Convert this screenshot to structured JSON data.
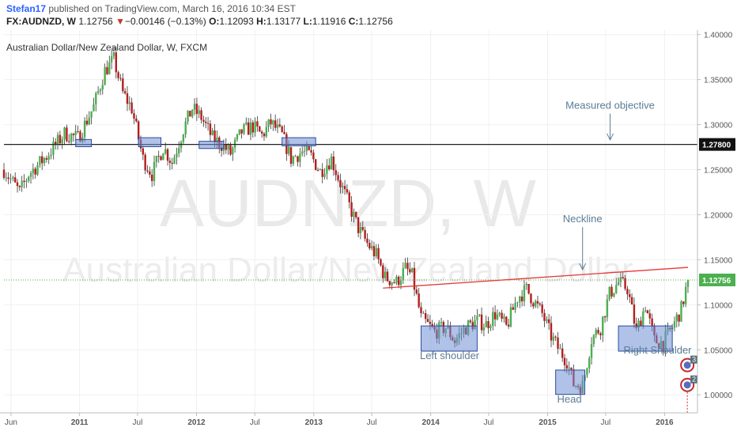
{
  "header": {
    "user": "Stefan17",
    "published": "published on TradingView.com, March 16, 2016 10:34 EST",
    "symbol": "FX:AUDNZD,",
    "interval": "W",
    "last": "1.12756",
    "change_arrow": "▼",
    "change": "−0.00146 (−0.13%)",
    "o_label": "O:",
    "o_value": "1.12093",
    "h_label": "H:",
    "h_value": "1.13177",
    "l_label": "L:",
    "l_value": "1.11916",
    "c_label": "C:",
    "c_value": "1.12756"
  },
  "colors": {
    "up": "#4caf50",
    "down": "#b71c1c",
    "neckline": "#e53935",
    "objective_line": "#222222",
    "box_fill": "#6f8fd6",
    "box_stroke": "#2b4a9e",
    "annotation": "#5b7c95"
  },
  "chart_data": {
    "type": "candlestick",
    "title": "Australian Dollar/New Zealand Dollar, W, FXCM",
    "watermark_symbol": "AUDNZD, W",
    "watermark_name": "Australian Dollar/New Zealand Dollar",
    "ylim": [
      0.98,
      1.405
    ],
    "y_ticks": [
      "1.40000",
      "1.35000",
      "1.30000",
      "1.25000",
      "1.20000",
      "1.15000",
      "1.10000",
      "1.05000",
      "1.00000"
    ],
    "y_tick_values": [
      1.4,
      1.35,
      1.3,
      1.25,
      1.2,
      1.15,
      1.1,
      1.05,
      1.0
    ],
    "x_ticks": [
      "Jun",
      "2011",
      "Jul",
      "2012",
      "Jul",
      "2013",
      "Jul",
      "2014",
      "Jul",
      "2015",
      "Jul",
      "2016"
    ],
    "x_tick_dates": [
      "2010-06-01",
      "2011-01-01",
      "2011-07-01",
      "2012-01-01",
      "2012-07-01",
      "2013-01-01",
      "2013-07-01",
      "2014-01-01",
      "2014-07-01",
      "2015-01-01",
      "2015-07-01",
      "2016-01-01"
    ],
    "x_range": [
      "2010-05-10",
      "2016-03-14"
    ],
    "price_labels": [
      {
        "value": "1.27800",
        "price": 1.278,
        "style": "dark"
      },
      {
        "value": "1.12756",
        "price": 1.12756,
        "style": "green"
      }
    ],
    "objective_line": {
      "price": 1.278
    },
    "neckline": {
      "from": {
        "date": "2013-08-05",
        "price": 1.1185
      },
      "to": {
        "date": "2016-03-14",
        "price": 1.1415
      }
    },
    "current_price_line": 1.12756,
    "annotations": [
      {
        "text": "Measured objective",
        "date": "2015-07-15",
        "price": 1.3175,
        "arrow_to": 1.283
      },
      {
        "text": "Neckline",
        "date": "2015-04-20",
        "price": 1.1915,
        "arrow_to": 1.139
      },
      {
        "text": "Left shoulder",
        "date": "2014-03-01",
        "price": 1.0395
      },
      {
        "text": "Head",
        "date": "2015-03-10",
        "price": 0.9915
      },
      {
        "text": "Right Shoulder",
        "date": "2015-12-10",
        "price": 1.046
      }
    ],
    "boxes": [
      {
        "from": "2010-12-20",
        "to": "2011-02-07",
        "low": 1.2755,
        "high": 1.2835
      },
      {
        "from": "2011-07-04",
        "to": "2011-09-12",
        "low": 1.2755,
        "high": 1.2855
      },
      {
        "from": "2012-01-09",
        "to": "2012-03-26",
        "low": 1.2735,
        "high": 1.2815
      },
      {
        "from": "2012-09-24",
        "to": "2013-01-07",
        "low": 1.2765,
        "high": 1.2855
      },
      {
        "from": "2013-12-02",
        "to": "2014-05-26",
        "low": 1.0485,
        "high": 1.0765
      },
      {
        "from": "2015-01-26",
        "to": "2015-04-27",
        "low": 1.0005,
        "high": 1.0275
      },
      {
        "from": "2015-08-10",
        "to": "2016-01-25",
        "low": 1.0485,
        "high": 1.0765
      }
    ],
    "series_anchors": [
      [
        "2010-05-10",
        1.25
      ],
      [
        "2010-06-28",
        1.225
      ],
      [
        "2010-07-26",
        1.245
      ],
      [
        "2010-09-20",
        1.265
      ],
      [
        "2010-11-15",
        1.29
      ],
      [
        "2010-12-27",
        1.285
      ],
      [
        "2011-02-14",
        1.32
      ],
      [
        "2011-03-21",
        1.36
      ],
      [
        "2011-04-18",
        1.372
      ],
      [
        "2011-05-16",
        1.335
      ],
      [
        "2011-06-13",
        1.318
      ],
      [
        "2011-07-18",
        1.262
      ],
      [
        "2011-08-15",
        1.245
      ],
      [
        "2011-09-19",
        1.275
      ],
      [
        "2011-10-17",
        1.258
      ],
      [
        "2011-11-21",
        1.295
      ],
      [
        "2011-12-19",
        1.318
      ],
      [
        "2012-01-16",
        1.308
      ],
      [
        "2012-02-20",
        1.285
      ],
      [
        "2012-03-19",
        1.278
      ],
      [
        "2012-04-16",
        1.268
      ],
      [
        "2012-05-21",
        1.292
      ],
      [
        "2012-06-25",
        1.298
      ],
      [
        "2012-07-23",
        1.288
      ],
      [
        "2012-08-20",
        1.302
      ],
      [
        "2012-09-24",
        1.288
      ],
      [
        "2012-10-22",
        1.262
      ],
      [
        "2012-11-26",
        1.27
      ],
      [
        "2012-12-24",
        1.265
      ],
      [
        "2013-01-21",
        1.248
      ],
      [
        "2013-02-25",
        1.262
      ],
      [
        "2013-03-25",
        1.235
      ],
      [
        "2013-04-22",
        1.21
      ],
      [
        "2013-05-20",
        1.185
      ],
      [
        "2013-06-17",
        1.168
      ],
      [
        "2013-07-15",
        1.155
      ],
      [
        "2013-08-12",
        1.13
      ],
      [
        "2013-09-16",
        1.125
      ],
      [
        "2013-10-14",
        1.14
      ],
      [
        "2013-11-04",
        1.132
      ],
      [
        "2013-12-02",
        1.085
      ],
      [
        "2014-01-13",
        1.07
      ],
      [
        "2014-02-17",
        1.075
      ],
      [
        "2014-03-17",
        1.06
      ],
      [
        "2014-04-21",
        1.075
      ],
      [
        "2014-05-26",
        1.082
      ],
      [
        "2014-06-23",
        1.078
      ],
      [
        "2014-07-21",
        1.09
      ],
      [
        "2014-08-25",
        1.075
      ],
      [
        "2014-09-29",
        1.108
      ],
      [
        "2014-10-27",
        1.117
      ],
      [
        "2014-11-17",
        1.105
      ],
      [
        "2014-12-15",
        1.09
      ],
      [
        "2015-01-12",
        1.065
      ],
      [
        "2015-02-09",
        1.048
      ],
      [
        "2015-03-02",
        1.038
      ],
      [
        "2015-03-23",
        1.012
      ],
      [
        "2015-04-20",
        1.01
      ],
      [
        "2015-05-18",
        1.062
      ],
      [
        "2015-06-15",
        1.075
      ],
      [
        "2015-07-13",
        1.112
      ],
      [
        "2015-08-10",
        1.125
      ],
      [
        "2015-09-07",
        1.118
      ],
      [
        "2015-10-05",
        1.07
      ],
      [
        "2015-11-02",
        1.1
      ],
      [
        "2015-11-30",
        1.06
      ],
      [
        "2015-12-28",
        1.058
      ],
      [
        "2016-01-25",
        1.075
      ],
      [
        "2016-02-22",
        1.095
      ],
      [
        "2016-03-14",
        1.1276
      ]
    ]
  },
  "flags": [
    {
      "number": "3",
      "date": "2016-03-07",
      "price": 1.033
    },
    {
      "number": "2",
      "date": "2016-03-07",
      "price": 1.011
    }
  ]
}
